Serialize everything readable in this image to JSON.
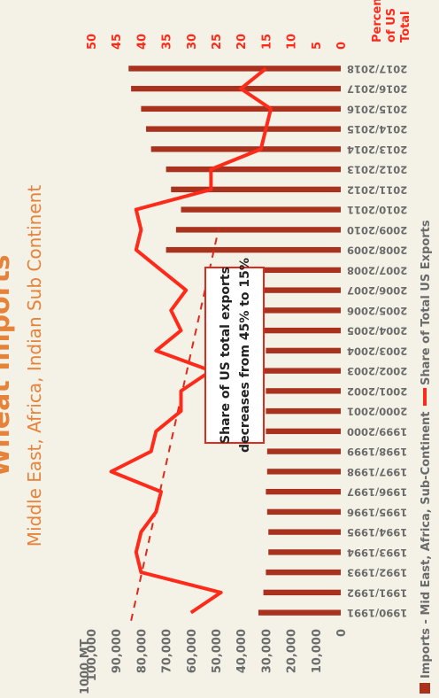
{
  "chart_data": {
    "type": "bar",
    "title": "Wheat Imports",
    "subtitle": "Middle East, Africa, Indian Sub Continent",
    "y_left_unit": "1000 MT",
    "y_right_unit_line1": "Percent",
    "y_right_unit_line2": "of US",
    "y_right_unit_line3": "Total",
    "ylim": [
      0,
      100000
    ],
    "y2lim": [
      0,
      50
    ],
    "y_ticks": [
      "0",
      "10,000",
      "20,000",
      "30,000",
      "40,000",
      "50,000",
      "60,000",
      "70,000",
      "80,000",
      "90,000",
      "100,000"
    ],
    "y2_ticks": [
      "0",
      "5",
      "10",
      "15",
      "20",
      "25",
      "30",
      "35",
      "40",
      "45",
      "50"
    ],
    "categories": [
      "1990/1991",
      "1991/1992",
      "1992/1993",
      "1993/1994",
      "1994/1995",
      "1995/1996",
      "1996/1997",
      "1997/1998",
      "1998/1999",
      "1999/2000",
      "2000/2001",
      "2001/2002",
      "2002/2003",
      "2003/2004",
      "2004/2005",
      "2005/2006",
      "2006/2007",
      "2007/2008",
      "2008/2009",
      "2009/2010",
      "2010/2011",
      "2011/2012",
      "2012/2013",
      "2013/2014",
      "2014/2015",
      "2015/2016",
      "2016/2017",
      "2017/2018"
    ],
    "series": [
      {
        "name": "Imports - Mid East, Africa, Sub-Continent",
        "axis": "left",
        "kind": "bar",
        "color": "#a8321e",
        "values": [
          33000,
          31000,
          30000,
          29000,
          29000,
          29500,
          30000,
          29500,
          29500,
          30000,
          30000,
          30000,
          30500,
          30000,
          31000,
          31000,
          31500,
          51000,
          70000,
          66000,
          64000,
          68000,
          70000,
          76000,
          78000,
          80000,
          84000,
          85000
        ]
      },
      {
        "name": "Share of Total US Exports",
        "axis": "right",
        "kind": "line",
        "color": "#ff2a1a",
        "values": [
          30,
          24,
          40,
          41,
          40,
          37,
          36,
          46,
          38,
          37,
          32,
          32,
          26,
          37,
          32,
          34,
          31,
          36,
          41,
          40,
          41,
          26,
          26,
          16,
          15,
          14,
          20,
          15
        ]
      }
    ],
    "trendline": {
      "from_percent": 42,
      "to_percent": 24.5,
      "style": "dashed"
    },
    "annotation_line1": "Share of US total exports",
    "annotation_line2": "decreases from 45% to 15%",
    "legend_position": "bottom",
    "grid": false
  }
}
